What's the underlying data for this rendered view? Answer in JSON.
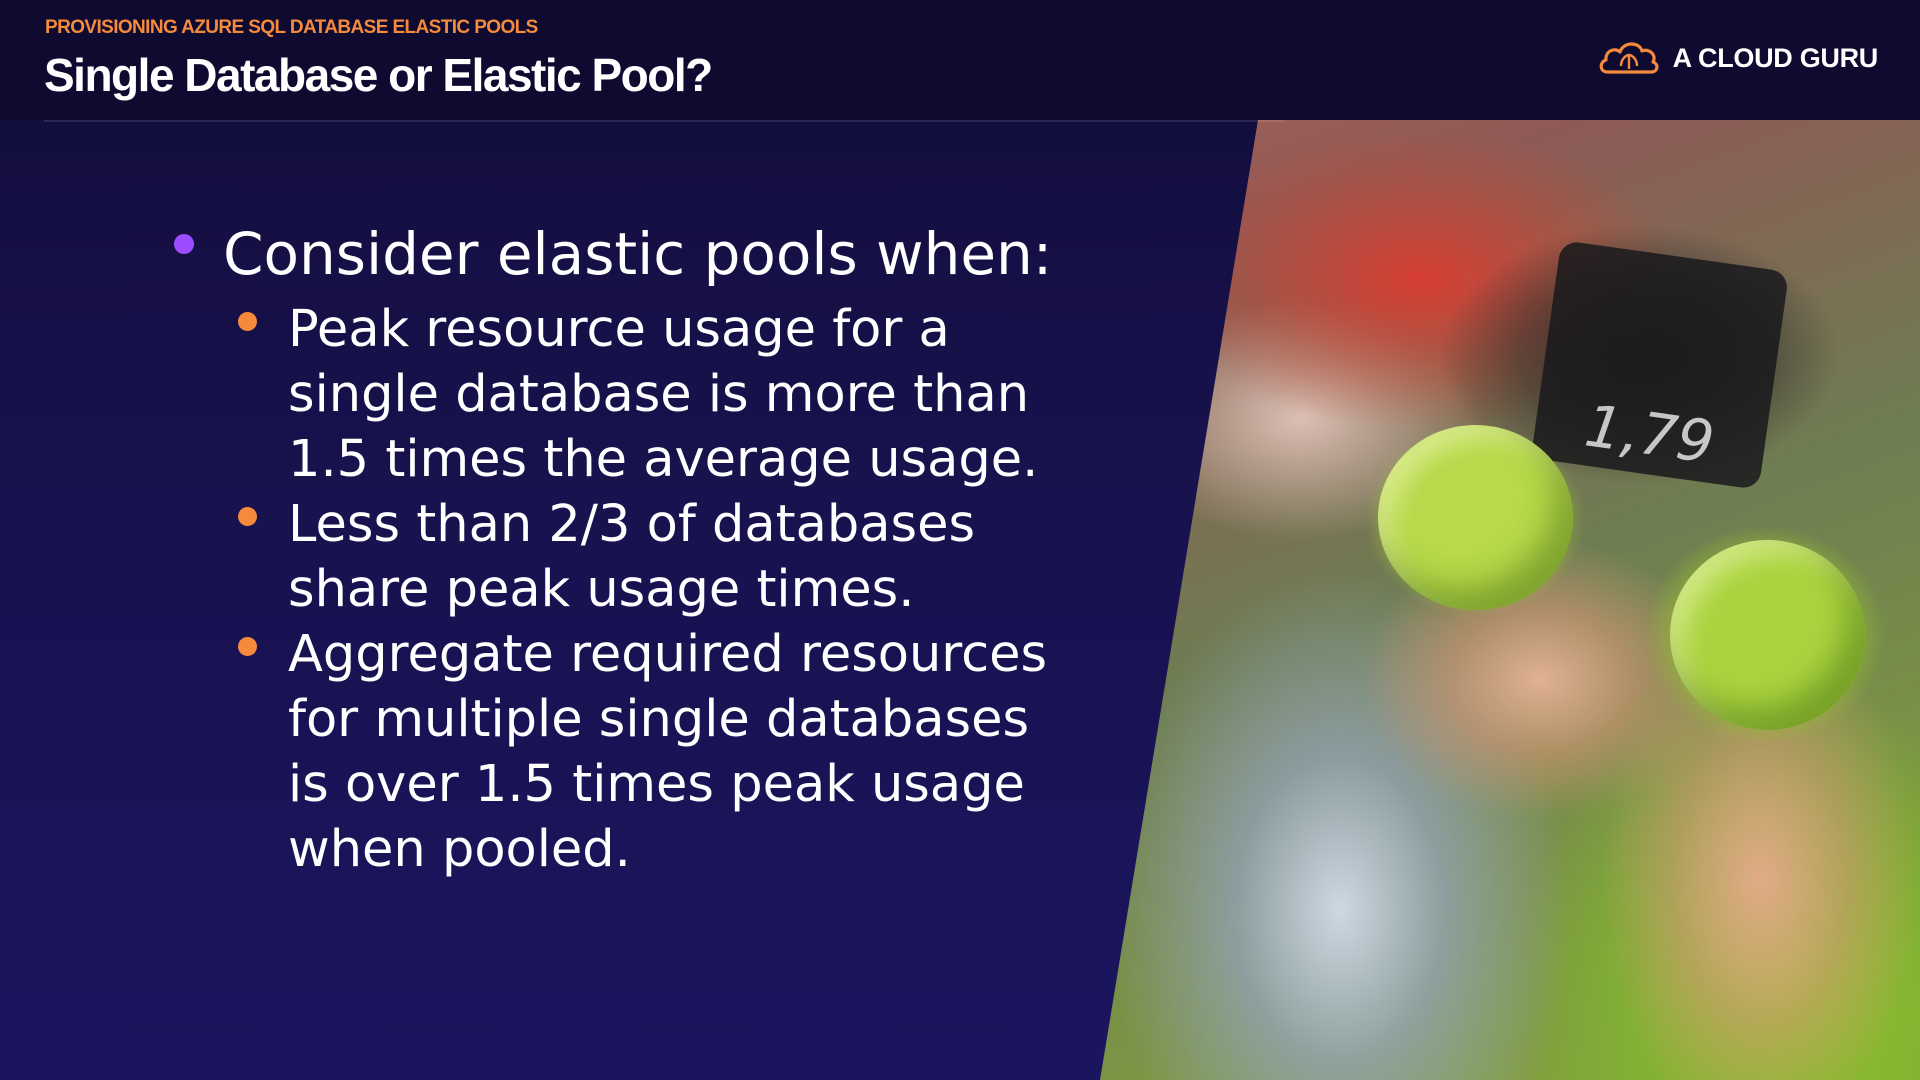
{
  "header": {
    "kicker": "PROVISIONING AZURE SQL DATABASE ELASTIC POOLS",
    "title": "Single Database or Elastic Pool?"
  },
  "brand": {
    "name": "A CLOUD GURU",
    "logo_icon": "cloud-logo-icon",
    "accent_color": "#f58a3c"
  },
  "bullets": {
    "heading": "Consider elastic pools when:",
    "heading_dot_color": "#9b4dff",
    "sub_dot_color": "#f58a3c",
    "items": [
      {
        "lines": [
          "Peak resource usage for a",
          "single database is more than",
          "1.5 times the average usage."
        ]
      },
      {
        "lines": [
          "Less than 2/3 of databases",
          "share peak usage times."
        ]
      },
      {
        "lines": [
          "Aggregate required resources",
          "for multiple single databases",
          "is over 1.5 times peak usage",
          "when pooled."
        ]
      }
    ]
  },
  "photo": {
    "subject": "hands-holding-green-apples-image",
    "sign_text": "1,79"
  }
}
